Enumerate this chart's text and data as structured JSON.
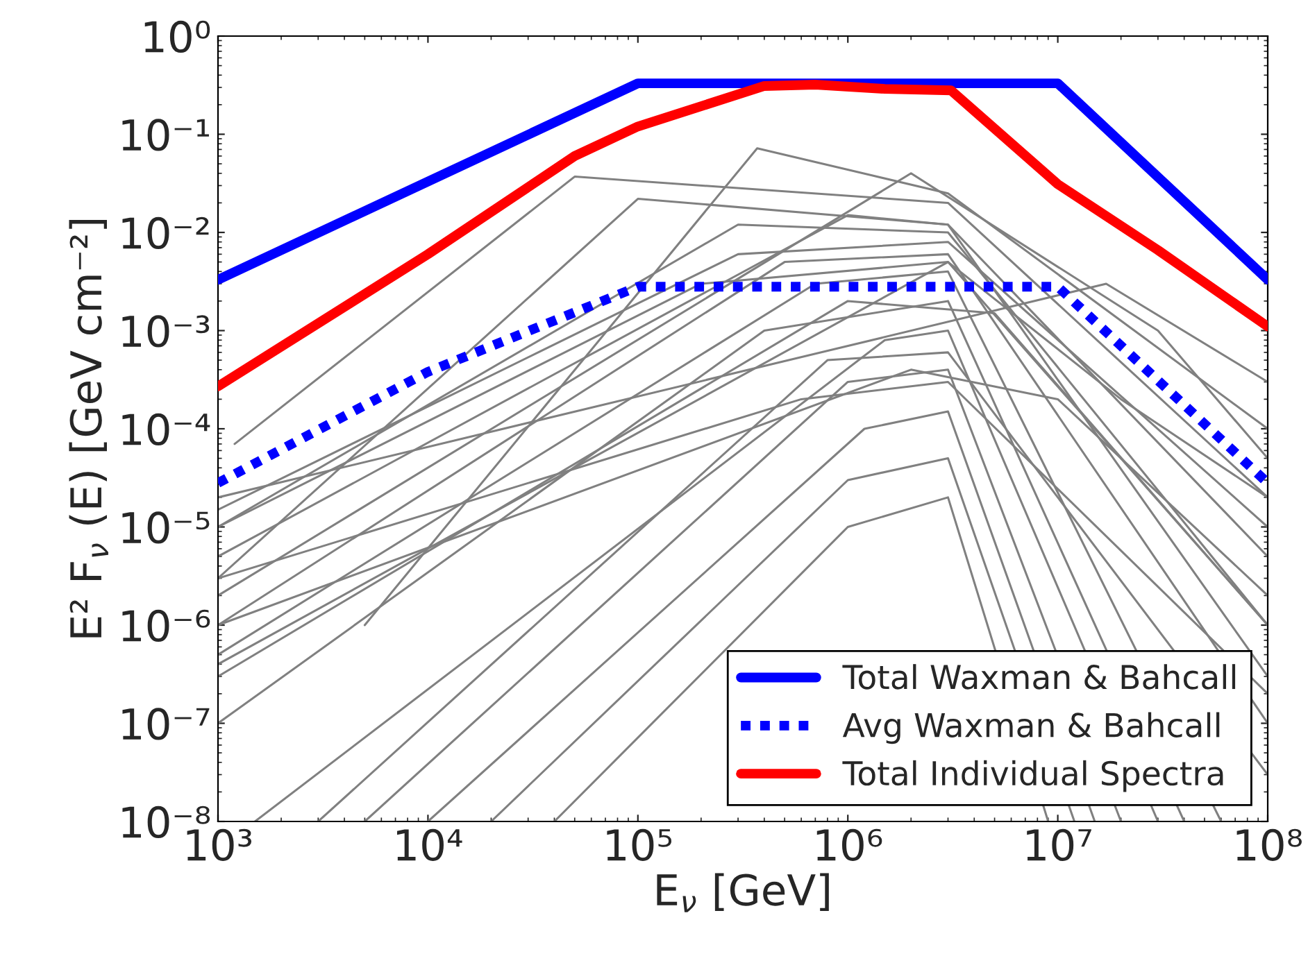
{
  "chart_data": {
    "type": "line",
    "xlabel": "E$_{ν}$ [GeV]",
    "ylabel": "E² F$_{ν}$ (E) [GeV cm⁻²]",
    "log": "xy",
    "grid": false,
    "legend": "bottom right",
    "xlim": [
      1000,
      100000000
    ],
    "ylim": [
      1e-08,
      1
    ],
    "xticks": [
      {
        "value": 1000,
        "label": "10³"
      },
      {
        "value": 10000,
        "label": "10⁴"
      },
      {
        "value": 100000,
        "label": "10⁵"
      },
      {
        "value": 1000000,
        "label": "10⁶"
      },
      {
        "value": 10000000,
        "label": "10⁷"
      },
      {
        "value": 100000000,
        "label": "10⁸"
      }
    ],
    "yticks": [
      {
        "value": 1e-08,
        "label": "10⁻⁸"
      },
      {
        "value": 1e-07,
        "label": "10⁻⁷"
      },
      {
        "value": 1e-06,
        "label": "10⁻⁶"
      },
      {
        "value": 1e-05,
        "label": "10⁻⁵"
      },
      {
        "value": 0.0001,
        "label": "10⁻⁴"
      },
      {
        "value": 0.001,
        "label": "10⁻³"
      },
      {
        "value": 0.01,
        "label": "10⁻²"
      },
      {
        "value": 0.1,
        "label": "10⁻¹"
      },
      {
        "value": 1,
        "label": "10⁰"
      }
    ],
    "series": [
      {
        "color": "#808080",
        "line_style": "solid",
        "x": [
          1200,
          50000,
          3000000,
          100000000
        ],
        "values": [
          7e-05,
          0.037,
          0.02,
          2e-05
        ]
      },
      {
        "color": "#808080",
        "line_style": "solid",
        "x": [
          5000,
          370000,
          3000000,
          100000000
        ],
        "values": [
          1e-06,
          0.072,
          0.025,
          0.0001
        ]
      },
      {
        "color": "#808080",
        "line_style": "solid",
        "x": [
          1000,
          100000,
          3000000,
          100000000
        ],
        "values": [
          3e-06,
          0.022,
          0.012,
          5e-06
        ]
      },
      {
        "color": "#808080",
        "line_style": "solid",
        "x": [
          1000,
          17000000,
          100000000
        ],
        "values": [
          2e-05,
          0.003,
          0.0003
        ]
      },
      {
        "color": "#808080",
        "line_style": "solid",
        "x": [
          1000,
          300000,
          3000000,
          100000000
        ],
        "values": [
          1e-05,
          0.012,
          0.01,
          1e-06
        ]
      },
      {
        "color": "#808080",
        "line_style": "solid",
        "x": [
          1000,
          1000000,
          3000000,
          100000000
        ],
        "values": [
          5e-06,
          0.015,
          0.012,
          3e-07
        ]
      },
      {
        "color": "#808080",
        "line_style": "solid",
        "x": [
          1000,
          2000000,
          30000000,
          100000000
        ],
        "values": [
          2e-06,
          0.04,
          0.001,
          5e-05
        ]
      },
      {
        "color": "#808080",
        "line_style": "solid",
        "x": [
          1000,
          500000,
          3000000,
          100000000
        ],
        "values": [
          1e-06,
          0.005,
          0.006,
          1e-07
        ]
      },
      {
        "color": "#808080",
        "line_style": "solid",
        "x": [
          1000,
          700000,
          3000000,
          60000000
        ],
        "values": [
          5e-07,
          0.003,
          0.004,
          1e-08
        ]
      },
      {
        "color": "#808080",
        "line_style": "solid",
        "x": [
          1000,
          1000000,
          5000000,
          100000000
        ],
        "values": [
          3e-07,
          0.002,
          0.0015,
          1e-06
        ]
      },
      {
        "color": "#808080",
        "line_style": "solid",
        "x": [
          1000,
          400000,
          3000000,
          40000000
        ],
        "values": [
          1e-07,
          0.001,
          0.002,
          1e-08
        ]
      },
      {
        "color": "#808080",
        "line_style": "solid",
        "x": [
          1500,
          1500000,
          3000000,
          30000000
        ],
        "values": [
          1e-08,
          0.0008,
          0.001,
          1e-08
        ]
      },
      {
        "color": "#808080",
        "line_style": "solid",
        "x": [
          3000,
          800000,
          3000000,
          100000000
        ],
        "values": [
          1e-08,
          0.0005,
          0.0006,
          3e-08
        ]
      },
      {
        "color": "#808080",
        "line_style": "solid",
        "x": [
          5000,
          1000000,
          3000000,
          20000000
        ],
        "values": [
          1e-08,
          0.0003,
          0.0004,
          1e-08
        ]
      },
      {
        "color": "#808080",
        "line_style": "solid",
        "x": [
          1000,
          600000,
          3000000,
          100000000
        ],
        "values": [
          3e-06,
          0.0002,
          0.0003,
          2e-07
        ]
      },
      {
        "color": "#808080",
        "line_style": "solid",
        "x": [
          10000,
          1200000,
          3000000,
          15000000
        ],
        "values": [
          1e-08,
          0.0001,
          0.00015,
          1e-08
        ]
      },
      {
        "color": "#808080",
        "line_style": "solid",
        "x": [
          1000,
          2000000,
          10000000,
          100000000
        ],
        "values": [
          1e-06,
          0.0004,
          0.0002,
          2e-06
        ]
      },
      {
        "color": "#808080",
        "line_style": "solid",
        "x": [
          20000,
          1000000,
          3000000,
          12000000
        ],
        "values": [
          1e-08,
          3e-05,
          5e-05,
          1e-08
        ]
      },
      {
        "color": "#808080",
        "line_style": "solid",
        "x": [
          1000,
          300000,
          3000000,
          100000000
        ],
        "values": [
          1.5e-05,
          0.006,
          0.008,
          1e-05
        ]
      },
      {
        "color": "#808080",
        "line_style": "solid",
        "x": [
          1000,
          200000,
          3000000,
          100000000
        ],
        "values": [
          1e-05,
          0.003,
          0.005,
          1e-06
        ]
      },
      {
        "color": "#808080",
        "line_style": "solid",
        "x": [
          40000,
          1000000,
          3000000,
          9000000
        ],
        "values": [
          1e-08,
          1e-05,
          2e-05,
          1e-08
        ]
      },
      {
        "color": "#808080",
        "line_style": "solid",
        "x": [
          1000,
          3000000,
          20000000,
          100000000
        ],
        "values": [
          4e-07,
          0.005,
          0.0002,
          2e-05
        ]
      },
      {
        "name": "Total Waxman & Bahcall",
        "color": "#0000ff",
        "line_style": "solid",
        "x": [
          1000,
          100000,
          10000000,
          100000000
        ],
        "values": [
          0.0033,
          0.33,
          0.33,
          0.0033
        ]
      },
      {
        "name": "Avg Waxman & Bahcall",
        "color": "#0000ff",
        "line_style": "dotted",
        "x": [
          1000,
          10000,
          100000,
          10000000,
          100000000
        ],
        "values": [
          2.8e-05,
          0.00038,
          0.0028,
          0.0028,
          2.8e-05
        ]
      },
      {
        "name": "Total Individual Spectra",
        "color": "#ff0000",
        "line_style": "solid",
        "x": [
          1000,
          10000,
          50000,
          100000,
          400000,
          700000,
          1500000,
          3100000,
          10000000,
          30000000,
          100000000
        ],
        "values": [
          0.00027,
          0.006,
          0.06,
          0.12,
          0.31,
          0.32,
          0.29,
          0.28,
          0.031,
          0.0066,
          0.0011
        ]
      }
    ]
  }
}
